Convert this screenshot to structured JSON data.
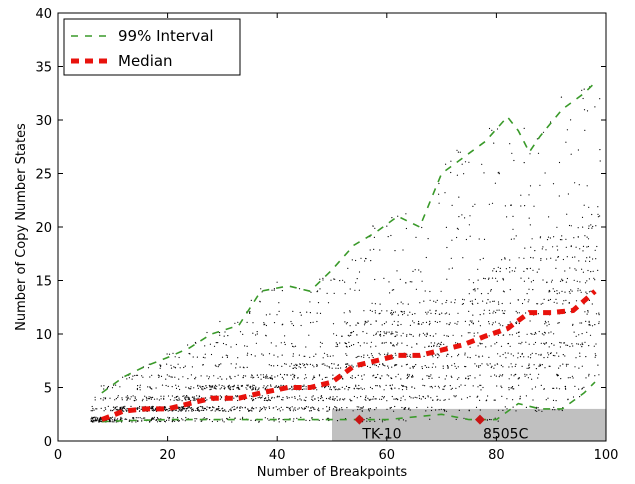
{
  "chart_data": {
    "type": "scatter",
    "title": "",
    "xlabel": "Number of Breakpoints",
    "ylabel": "Number of Copy Number States",
    "xlim": [
      0,
      100
    ],
    "ylim": [
      0,
      40
    ],
    "xticks": [
      0,
      20,
      40,
      60,
      80,
      100
    ],
    "yticks": [
      0,
      5,
      10,
      15,
      20,
      25,
      30,
      35,
      40
    ],
    "grid": false,
    "legend_position": "top-left",
    "colors": {
      "interval": "#3a9a2a",
      "median": "#e8120c",
      "points": "#000000",
      "shaded_region": "#c0c0c0",
      "annotation_marker": "#c81414"
    },
    "series": [
      {
        "name": "99% Interval",
        "style": "dashed",
        "upper": {
          "x": [
            8,
            12,
            16,
            20,
            24,
            28,
            33,
            37,
            42,
            46,
            50,
            54,
            58,
            62,
            66,
            70,
            74,
            78,
            82,
            84,
            86,
            88,
            92,
            96,
            98
          ],
          "y": [
            4.5,
            6.0,
            7.0,
            7.8,
            8.7,
            10.0,
            10.8,
            14.0,
            14.5,
            14.0,
            16.0,
            18.3,
            19.5,
            21.0,
            20.0,
            25.0,
            26.5,
            28.0,
            30.3,
            29.0,
            27.0,
            28.5,
            31.0,
            32.5,
            33.5
          ]
        },
        "lower": {
          "x": [
            8,
            12,
            20,
            30,
            40,
            50,
            60,
            70,
            75,
            80,
            84,
            88,
            92,
            96,
            98
          ],
          "y": [
            1.8,
            1.9,
            2.0,
            2.0,
            2.0,
            2.0,
            2.0,
            2.5,
            2.0,
            2.0,
            3.5,
            3.0,
            3.0,
            4.5,
            5.5
          ]
        }
      },
      {
        "name": "Median",
        "style": "dotted",
        "x": [
          8,
          12,
          16,
          20,
          24,
          28,
          33,
          37,
          42,
          46,
          50,
          54,
          58,
          62,
          66,
          70,
          74,
          78,
          82,
          86,
          90,
          94,
          98
        ],
        "y": [
          2.0,
          2.8,
          3.0,
          3.0,
          3.5,
          4.0,
          4.0,
          4.5,
          5.0,
          5.0,
          5.5,
          7.0,
          7.5,
          8.0,
          8.0,
          8.5,
          9.0,
          9.8,
          10.5,
          12.0,
          12.0,
          12.2,
          14.0
        ]
      }
    ],
    "shaded_region": {
      "x": [
        50,
        100
      ],
      "y": [
        0,
        3
      ]
    },
    "annotations": [
      {
        "label": "TK-10",
        "x": 55,
        "y": 2
      },
      {
        "label": "8505C",
        "x": 77,
        "y": 2
      }
    ]
  }
}
